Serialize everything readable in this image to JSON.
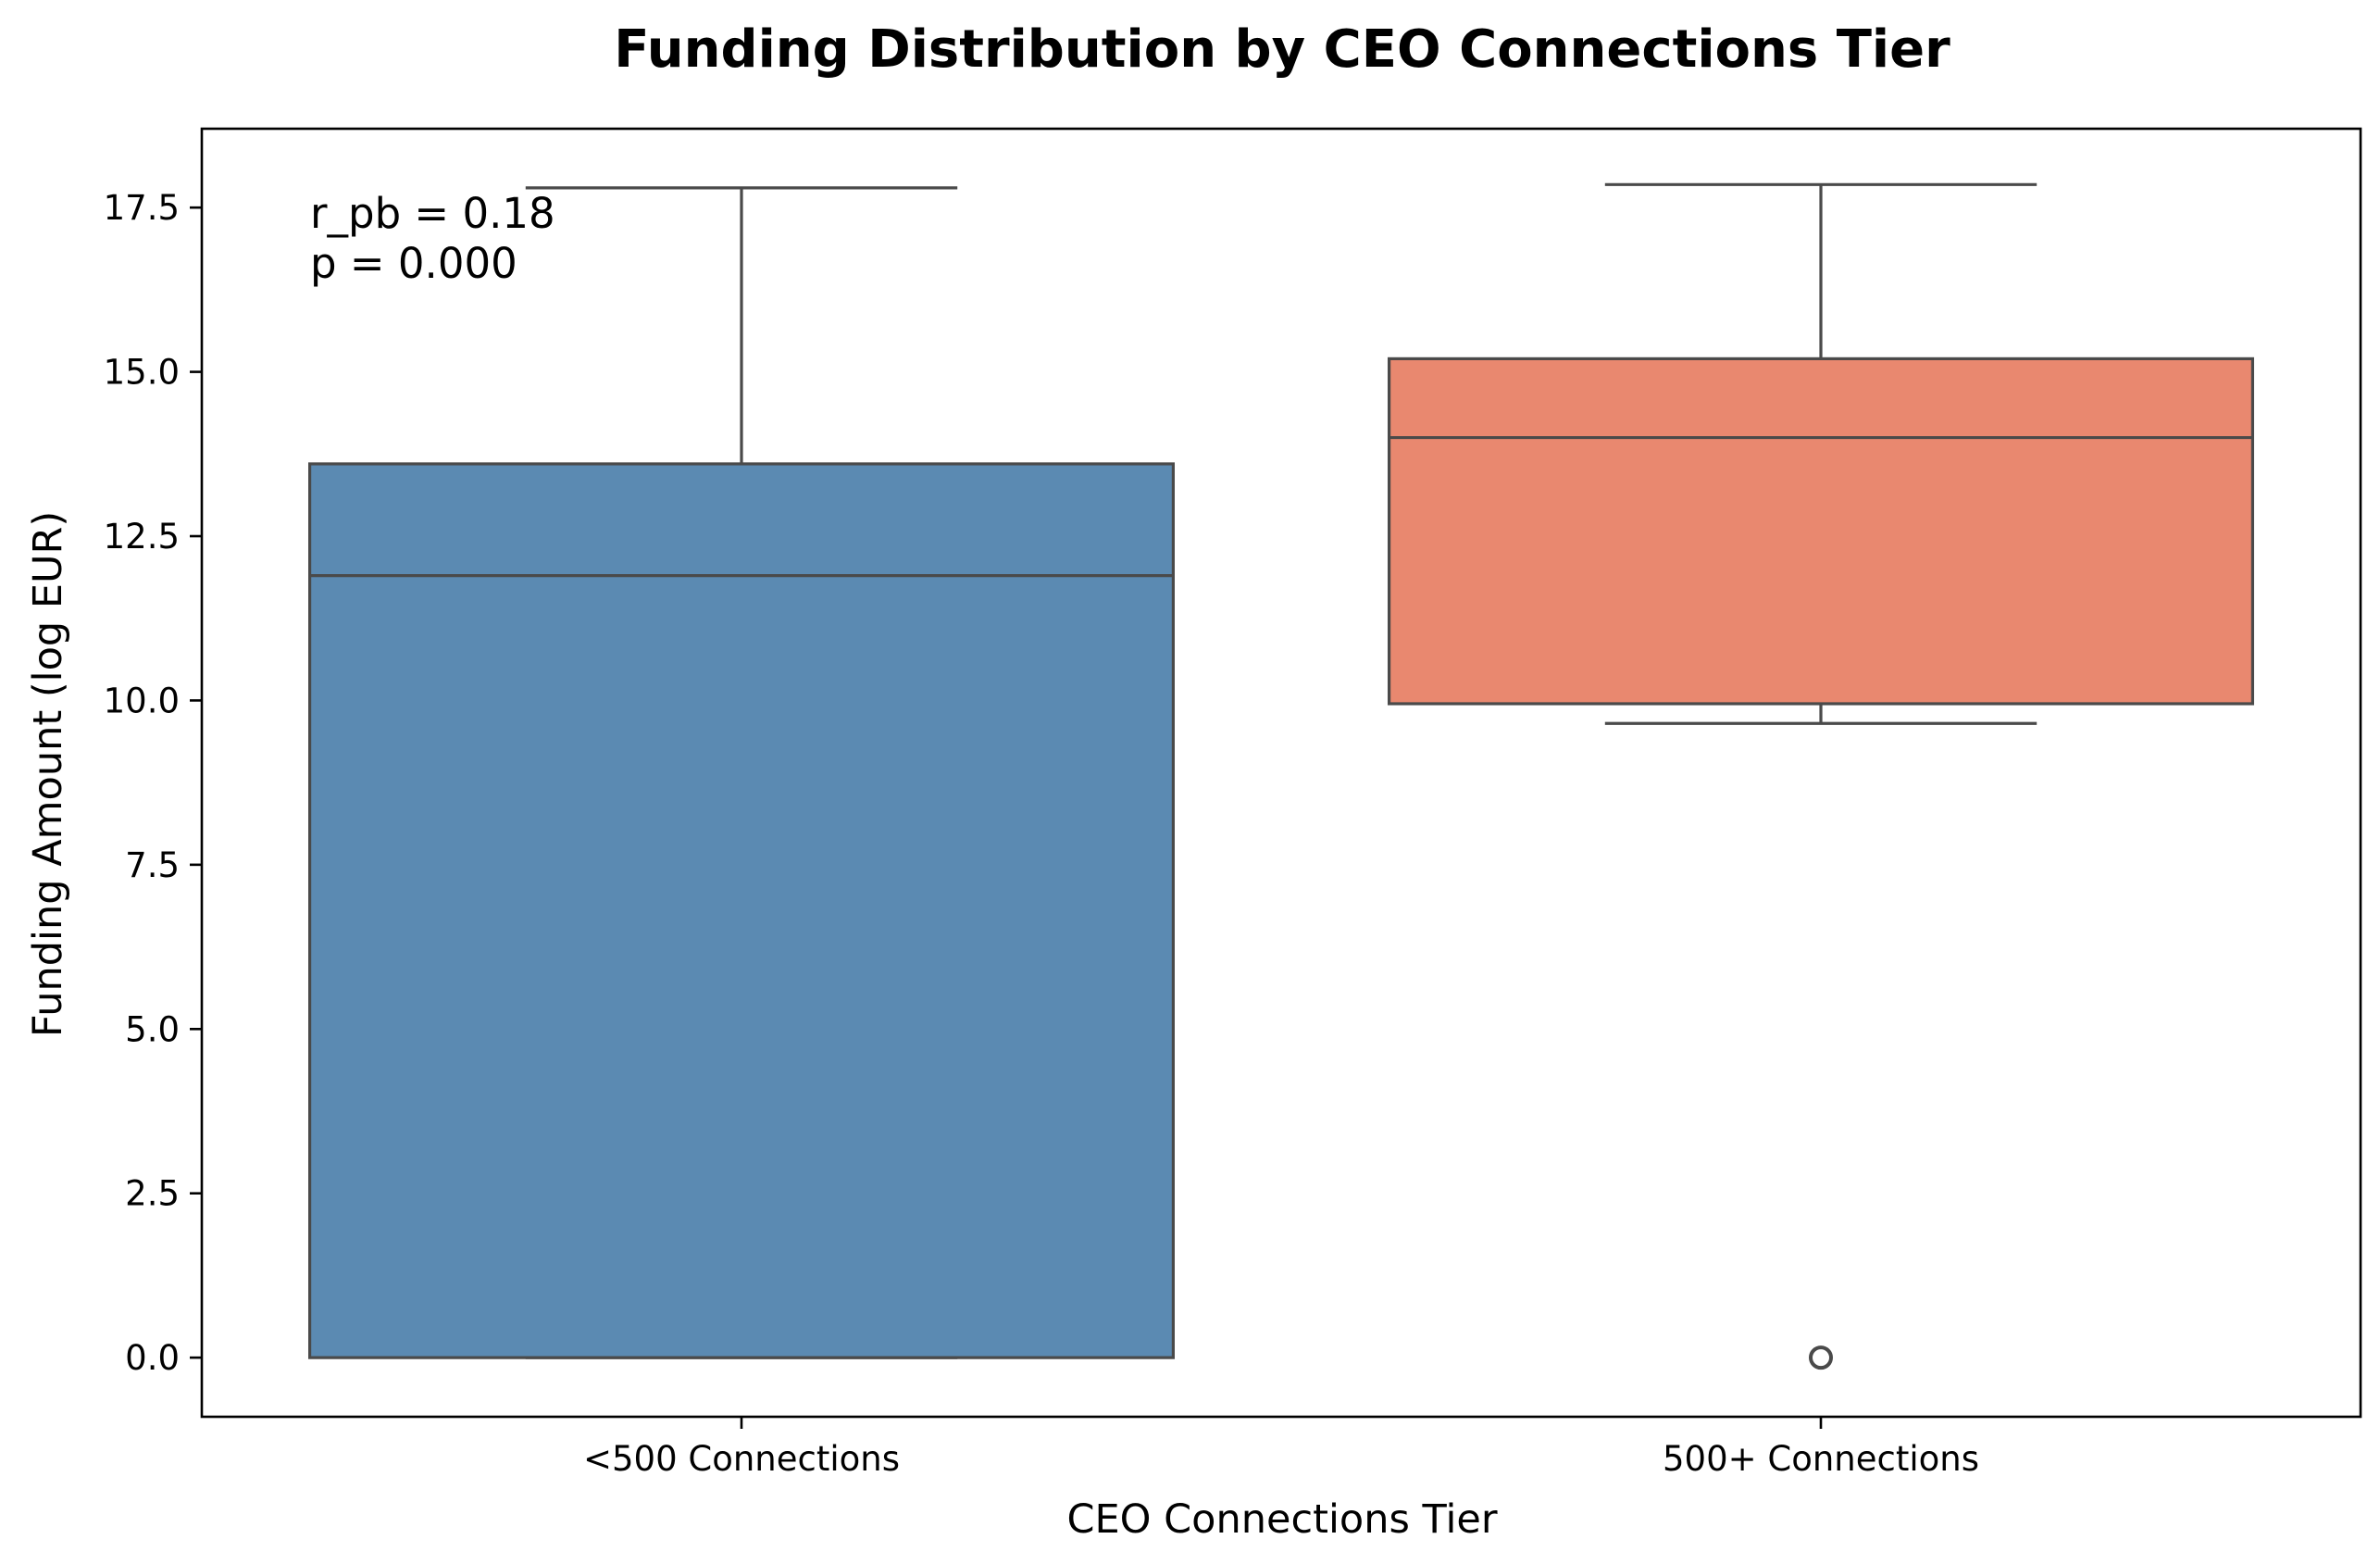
{
  "chart_data": {
    "type": "box",
    "title": "Funding Distribution by CEO Connections Tier",
    "xlabel": "CEO Connections Tier",
    "ylabel": "Funding Amount (log EUR)",
    "ylim": [
      -0.9,
      18.7
    ],
    "yticks": [
      0.0,
      2.5,
      5.0,
      7.5,
      10.0,
      12.5,
      15.0,
      17.5
    ],
    "ytick_labels": [
      "0.0",
      "2.5",
      "5.0",
      "7.5",
      "10.0",
      "12.5",
      "15.0",
      "17.5"
    ],
    "grid": false,
    "categories": [
      "<500 Connections",
      "500+ Connections"
    ],
    "series": [
      {
        "category": "<500 Connections",
        "color": "#5b8ab2",
        "whisker_low": 0.0,
        "q1": 0.0,
        "median": 11.9,
        "q3": 13.6,
        "whisker_high": 17.8,
        "outliers": []
      },
      {
        "category": "500+ Connections",
        "color": "#e9886f",
        "whisker_low": 9.65,
        "q1": 9.95,
        "median": 14.0,
        "q3": 15.2,
        "whisker_high": 17.85,
        "outliers": [
          0.0
        ]
      }
    ],
    "annotations": [
      "r_pb = 0.18",
      "p = 0.000"
    ]
  }
}
